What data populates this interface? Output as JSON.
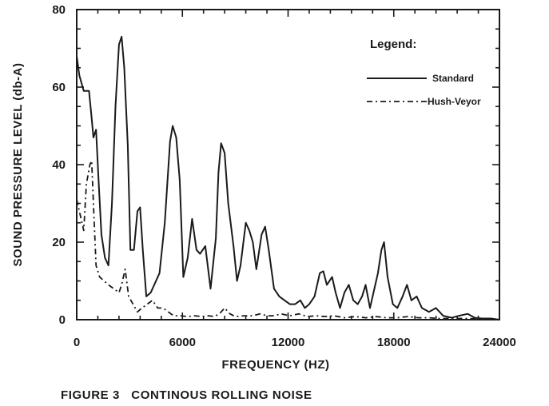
{
  "chart_data": {
    "type": "line",
    "caption": "FIGURE 3   CONTINOUS ROLLING NOISE",
    "xlabel": "FREQUENCY (HZ)",
    "ylabel": "SOUND PRESSURE LEVEL (db-A)",
    "xlim": [
      0,
      24000
    ],
    "ylim": [
      0,
      80
    ],
    "x_ticks": [
      0,
      6000,
      12000,
      18000,
      24000
    ],
    "y_ticks": [
      0,
      20,
      40,
      60,
      80
    ],
    "x_tick_labels": [
      "0",
      "6000",
      "12000",
      "18000",
      "24000"
    ],
    "y_tick_labels": [
      "0",
      "20",
      "40",
      "60",
      "80"
    ],
    "grid": false,
    "legend": {
      "title": "Legend:",
      "placement": "top-right",
      "entries": [
        "Standard",
        "Hush-Veyor"
      ]
    },
    "series": [
      {
        "name": "Standard",
        "style": "solid",
        "points": [
          [
            0,
            68
          ],
          [
            150,
            63
          ],
          [
            400,
            59
          ],
          [
            700,
            59
          ],
          [
            850,
            52
          ],
          [
            950,
            47
          ],
          [
            1100,
            49
          ],
          [
            1250,
            35
          ],
          [
            1400,
            22
          ],
          [
            1600,
            16
          ],
          [
            1800,
            14
          ],
          [
            2000,
            30
          ],
          [
            2200,
            55
          ],
          [
            2400,
            71
          ],
          [
            2550,
            73
          ],
          [
            2700,
            65
          ],
          [
            2900,
            45
          ],
          [
            3050,
            18
          ],
          [
            3250,
            18
          ],
          [
            3450,
            28
          ],
          [
            3600,
            29
          ],
          [
            3750,
            18
          ],
          [
            3950,
            6
          ],
          [
            4200,
            7
          ],
          [
            4700,
            12
          ],
          [
            5000,
            25
          ],
          [
            5300,
            46
          ],
          [
            5450,
            50
          ],
          [
            5650,
            47
          ],
          [
            5850,
            36
          ],
          [
            6050,
            11
          ],
          [
            6300,
            16
          ],
          [
            6550,
            26
          ],
          [
            6800,
            18
          ],
          [
            7000,
            17
          ],
          [
            7300,
            19
          ],
          [
            7600,
            8
          ],
          [
            7900,
            21
          ],
          [
            8050,
            38
          ],
          [
            8200,
            45.5
          ],
          [
            8400,
            43
          ],
          [
            8600,
            30
          ],
          [
            8900,
            19
          ],
          [
            9100,
            10
          ],
          [
            9300,
            14
          ],
          [
            9600,
            25
          ],
          [
            9800,
            23
          ],
          [
            10000,
            20
          ],
          [
            10200,
            13
          ],
          [
            10500,
            22
          ],
          [
            10700,
            24
          ],
          [
            10900,
            18
          ],
          [
            11200,
            8
          ],
          [
            11500,
            6
          ],
          [
            11800,
            5
          ],
          [
            12100,
            4
          ],
          [
            12400,
            4
          ],
          [
            12700,
            5
          ],
          [
            12950,
            3
          ],
          [
            13200,
            4
          ],
          [
            13500,
            6
          ],
          [
            13800,
            12
          ],
          [
            14000,
            12.5
          ],
          [
            14200,
            9
          ],
          [
            14500,
            11
          ],
          [
            14700,
            7
          ],
          [
            14950,
            3
          ],
          [
            15200,
            7
          ],
          [
            15450,
            9
          ],
          [
            15700,
            5
          ],
          [
            15950,
            4
          ],
          [
            16200,
            6
          ],
          [
            16400,
            9
          ],
          [
            16650,
            3
          ],
          [
            16900,
            8
          ],
          [
            17100,
            12
          ],
          [
            17300,
            18
          ],
          [
            17450,
            20
          ],
          [
            17650,
            11
          ],
          [
            17950,
            4
          ],
          [
            18200,
            3
          ],
          [
            18500,
            6
          ],
          [
            18750,
            9
          ],
          [
            19000,
            5
          ],
          [
            19300,
            6
          ],
          [
            19600,
            3
          ],
          [
            20000,
            2
          ],
          [
            20400,
            3
          ],
          [
            20800,
            1
          ],
          [
            21300,
            0.5
          ],
          [
            21700,
            1
          ],
          [
            22200,
            1.5
          ],
          [
            22600,
            0.5
          ],
          [
            23000,
            0.3
          ],
          [
            23500,
            0.3
          ],
          [
            24000,
            0
          ]
        ]
      },
      {
        "name": "Hush-Veyor",
        "style": "dashed",
        "points": [
          [
            0,
            31
          ],
          [
            200,
            27
          ],
          [
            400,
            23
          ],
          [
            550,
            35
          ],
          [
            750,
            40
          ],
          [
            850,
            41
          ],
          [
            950,
            30
          ],
          [
            1100,
            14
          ],
          [
            1300,
            11
          ],
          [
            1550,
            10
          ],
          [
            1800,
            9
          ],
          [
            2100,
            8
          ],
          [
            2400,
            7
          ],
          [
            2550,
            9
          ],
          [
            2750,
            13
          ],
          [
            2950,
            6
          ],
          [
            3200,
            4
          ],
          [
            3450,
            2
          ],
          [
            3700,
            3
          ],
          [
            4000,
            4
          ],
          [
            4300,
            5
          ],
          [
            4600,
            3
          ],
          [
            4900,
            3
          ],
          [
            5200,
            2
          ],
          [
            5500,
            1
          ],
          [
            5900,
            1
          ],
          [
            6300,
            0.8
          ],
          [
            6700,
            1
          ],
          [
            7100,
            0.8
          ],
          [
            7500,
            1
          ],
          [
            7800,
            0.8
          ],
          [
            8100,
            1.5
          ],
          [
            8400,
            3
          ],
          [
            8700,
            1.5
          ],
          [
            9000,
            0.8
          ],
          [
            9500,
            1
          ],
          [
            10000,
            1
          ],
          [
            10400,
            1.5
          ],
          [
            10800,
            1
          ],
          [
            11200,
            1
          ],
          [
            11600,
            1.5
          ],
          [
            12100,
            1
          ],
          [
            12600,
            1.5
          ],
          [
            13100,
            0.8
          ],
          [
            13600,
            1
          ],
          [
            14100,
            0.8
          ],
          [
            14600,
            1
          ],
          [
            15200,
            0.5
          ],
          [
            15800,
            0.8
          ],
          [
            16400,
            0.5
          ],
          [
            17000,
            0.8
          ],
          [
            17600,
            0.5
          ],
          [
            18200,
            0.5
          ],
          [
            18800,
            0.8
          ],
          [
            19400,
            0.5
          ],
          [
            20000,
            0.5
          ],
          [
            20600,
            0.3
          ],
          [
            21200,
            0.3
          ],
          [
            22000,
            0.3
          ],
          [
            23000,
            0.2
          ],
          [
            24000,
            0
          ]
        ]
      }
    ]
  }
}
